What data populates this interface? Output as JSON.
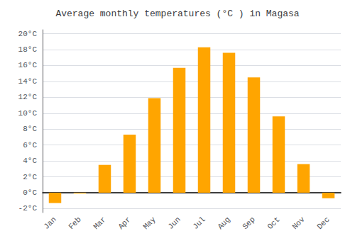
{
  "chart_data": {
    "type": "bar",
    "title": "Average monthly temperatures (°C ) in Magasa",
    "categories": [
      "Jan",
      "Feb",
      "Mar",
      "Apr",
      "May",
      "Jun",
      "Jul",
      "Aug",
      "Sep",
      "Oct",
      "Nov",
      "Dec"
    ],
    "values": [
      -1.3,
      -0.1,
      3.5,
      7.3,
      11.9,
      15.7,
      18.3,
      17.6,
      14.5,
      9.6,
      3.6,
      -0.7
    ],
    "color": "#FFA500",
    "ylim": [
      -2.5,
      20.5
    ],
    "yticks": [
      {
        "value": -2,
        "label": "-2°C"
      },
      {
        "value": 0,
        "label": "0°C"
      },
      {
        "value": 2,
        "label": "2°C"
      },
      {
        "value": 4,
        "label": "4°C"
      },
      {
        "value": 6,
        "label": "6°C"
      },
      {
        "value": 8,
        "label": "8°C"
      },
      {
        "value": 10,
        "label": "10°C"
      },
      {
        "value": 12,
        "label": "12°C"
      },
      {
        "value": 14,
        "label": "14°C"
      },
      {
        "value": 16,
        "label": "16°C"
      },
      {
        "value": 18,
        "label": "18°C"
      },
      {
        "value": 20,
        "label": "20°C"
      }
    ],
    "grid": true
  }
}
